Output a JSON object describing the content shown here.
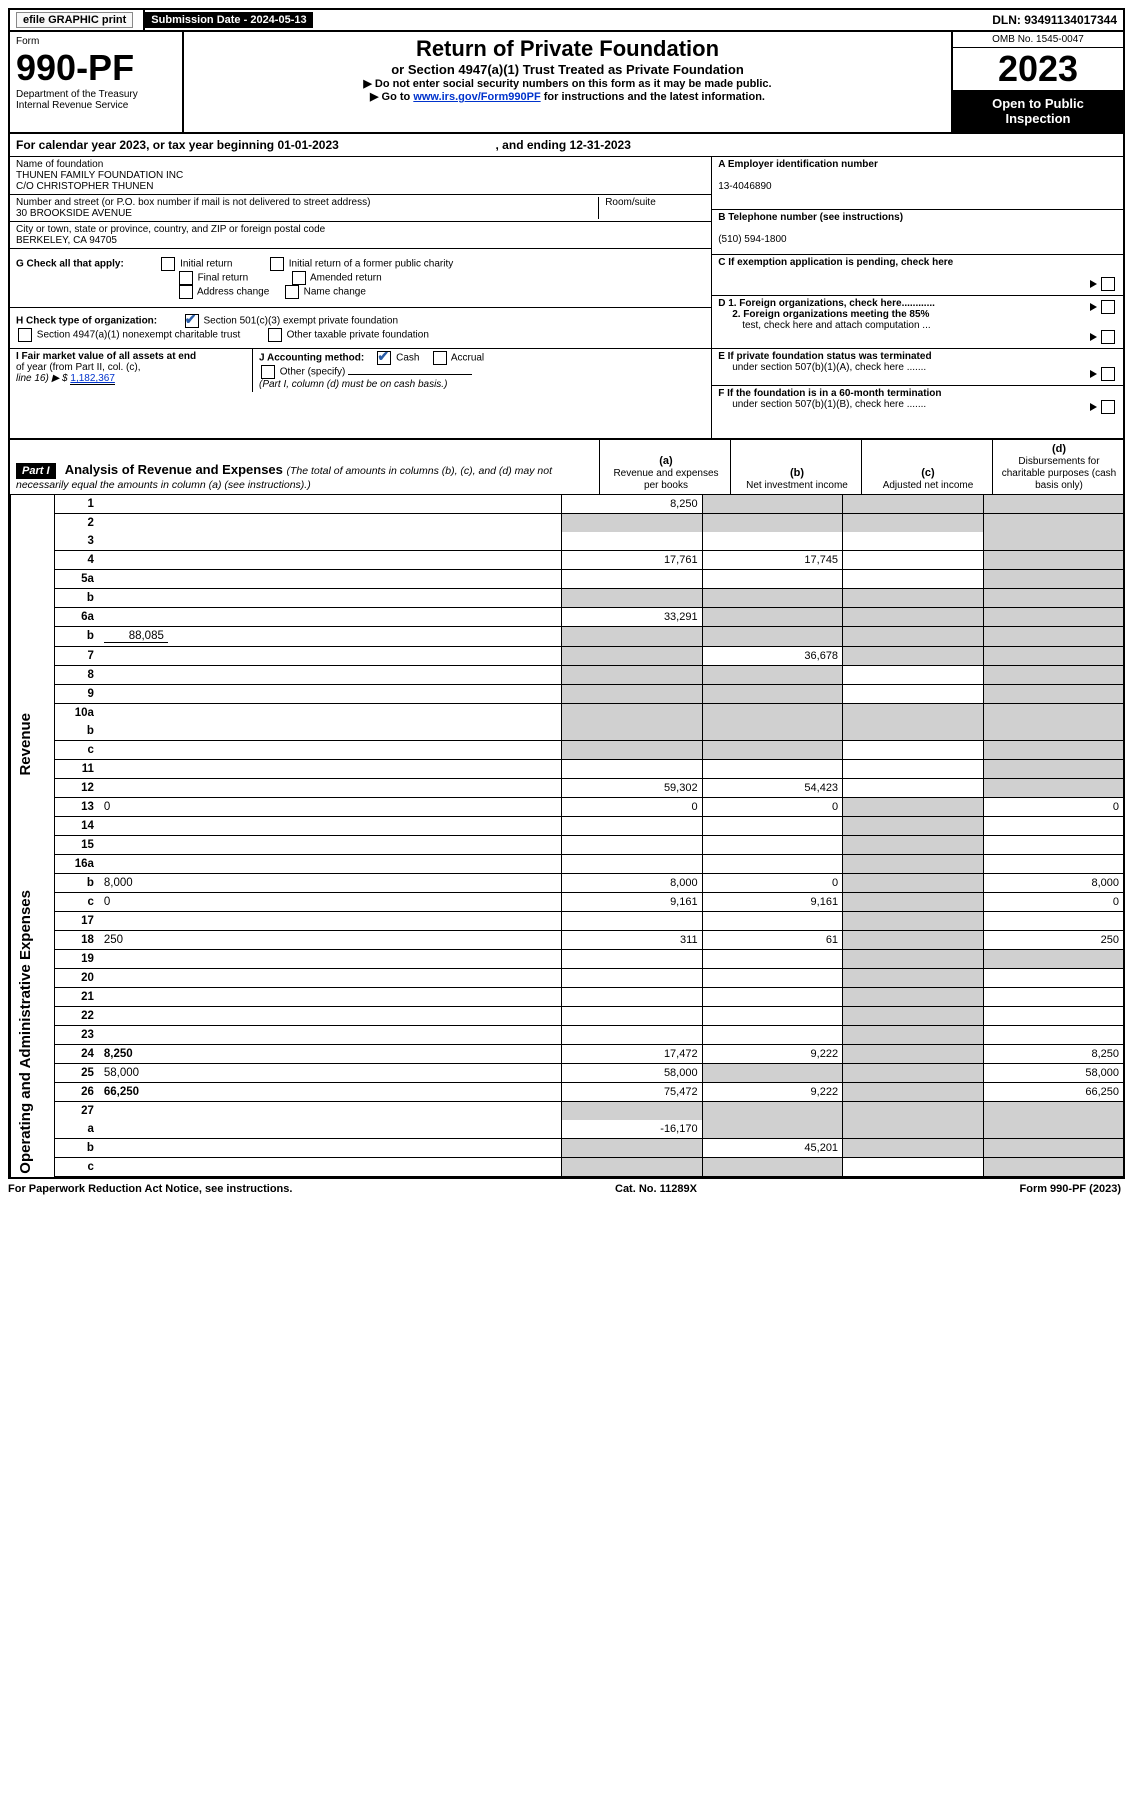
{
  "top": {
    "efile": "efile GRAPHIC print",
    "subm_label": "Submission Date - ",
    "subm_date": "2024-05-13",
    "dln_label": "DLN: ",
    "dln": "93491134017344"
  },
  "header": {
    "form_word": "Form",
    "form_num": "990-PF",
    "dept1": "Department of the Treasury",
    "dept2": "Internal Revenue Service",
    "title": "Return of Private Foundation",
    "sub": "or Section 4947(a)(1) Trust Treated as Private Foundation",
    "note1": "▶ Do not enter social security numbers on this form as it may be made public.",
    "note2_pre": "▶ Go to ",
    "note2_link": "www.irs.gov/Form990PF",
    "note2_post": " for instructions and the latest information.",
    "omb": "OMB No. 1545-0047",
    "year": "2023",
    "open": "Open to Public Inspection"
  },
  "cal": {
    "text": "For calendar year 2023, or tax year beginning 01-01-2023",
    "mid": ", and ending 12-31-2023"
  },
  "id": {
    "name_label": "Name of foundation",
    "name1": "THUNEN FAMILY FOUNDATION INC",
    "name2": "C/O CHRISTOPHER THUNEN",
    "addr_label": "Number and street (or P.O. box number if mail is not delivered to street address)",
    "addr": "30 BROOKSIDE AVENUE",
    "room_label": "Room/suite",
    "city_label": "City or town, state or province, country, and ZIP or foreign postal code",
    "city": "BERKELEY, CA  94705",
    "A_label": "A Employer identification number",
    "A_val": "13-4046890",
    "B_label": "B Telephone number (see instructions)",
    "B_val": "(510) 594-1800",
    "C_label": "C If exemption application is pending, check here",
    "D1": "D 1. Foreign organizations, check here............",
    "D2a": "2. Foreign organizations meeting the 85%",
    "D2b": "test, check here and attach computation ...",
    "E_a": "E  If private foundation status was terminated",
    "E_b": "under section 507(b)(1)(A), check here .......",
    "F_a": "F  If the foundation is in a 60-month termination",
    "F_b": "under section 507(b)(1)(B), check here .......",
    "G": "G Check all that apply:",
    "G_opts": [
      "Initial return",
      "Final return",
      "Address change",
      "Initial return of a former public charity",
      "Amended return",
      "Name change"
    ],
    "H": "H Check type of organization:",
    "H1": "Section 501(c)(3) exempt private foundation",
    "H2": "Section 4947(a)(1) nonexempt charitable trust",
    "H3": "Other taxable private foundation",
    "I_a": "I Fair market value of all assets at end",
    "I_b": "of year (from Part II, col. (c),",
    "I_c": "line 16) ▶ $  ",
    "I_val": "1,182,367",
    "J": "J Accounting method:",
    "J_cash": "Cash",
    "J_acc": "Accrual",
    "J_other": "Other (specify)",
    "J_note": "(Part I, column (d) must be on cash basis.)"
  },
  "part1": {
    "label": "Part I",
    "title": "Analysis of Revenue and Expenses ",
    "title_note": "(The total of amounts in columns (b), (c), and (d) may not necessarily equal the amounts in column (a) (see instructions).)",
    "ca": "(a)",
    "ca_t": "Revenue and expenses per books",
    "cb": "(b)",
    "cb_t": "Net investment income",
    "cc": "(c)",
    "cc_t": "Adjusted net income",
    "cd": "(d)",
    "cd_t": "Disbursements for charitable purposes (cash basis only)"
  },
  "labels": {
    "revenue": "Revenue",
    "opex": "Operating and Administrative Expenses"
  },
  "rows": [
    {
      "n": "1",
      "d": "",
      "a": "8,250",
      "b": "",
      "c": "",
      "shade": [
        "b",
        "c",
        "d"
      ]
    },
    {
      "n": "2",
      "d": "",
      "a": "",
      "b": "",
      "c": "",
      "shade": [
        "a",
        "b",
        "c",
        "d"
      ],
      "nobottom": true
    },
    {
      "n": "3",
      "d": "",
      "a": "",
      "b": "",
      "c": "",
      "shade": [
        "d"
      ]
    },
    {
      "n": "4",
      "d": "",
      "a": "17,761",
      "b": "17,745",
      "c": "",
      "shade": [
        "d"
      ]
    },
    {
      "n": "5a",
      "d": "",
      "a": "",
      "b": "",
      "c": "",
      "shade": [
        "d"
      ]
    },
    {
      "n": "b",
      "d": "",
      "a": "",
      "b": "",
      "c": "",
      "shade": [
        "a",
        "b",
        "c",
        "d"
      ]
    },
    {
      "n": "6a",
      "d": "",
      "a": "33,291",
      "b": "",
      "c": "",
      "shade": [
        "b",
        "c",
        "d"
      ]
    },
    {
      "n": "b",
      "d": "",
      "inline": "88,085",
      "a": "",
      "b": "",
      "c": "",
      "shade": [
        "a",
        "b",
        "c",
        "d"
      ]
    },
    {
      "n": "7",
      "d": "",
      "a": "",
      "b": "36,678",
      "c": "",
      "shade": [
        "a",
        "c",
        "d"
      ]
    },
    {
      "n": "8",
      "d": "",
      "a": "",
      "b": "",
      "c": "",
      "shade": [
        "a",
        "b",
        "d"
      ]
    },
    {
      "n": "9",
      "d": "",
      "a": "",
      "b": "",
      "c": "",
      "shade": [
        "a",
        "b",
        "d"
      ]
    },
    {
      "n": "10a",
      "d": "",
      "a": "",
      "b": "",
      "c": "",
      "shade": [
        "a",
        "b",
        "c",
        "d"
      ],
      "nobottom": true
    },
    {
      "n": "b",
      "d": "",
      "a": "",
      "b": "",
      "c": "",
      "shade": [
        "a",
        "b",
        "c",
        "d"
      ]
    },
    {
      "n": "c",
      "d": "",
      "a": "",
      "b": "",
      "c": "",
      "shade": [
        "a",
        "b",
        "d"
      ]
    },
    {
      "n": "11",
      "d": "",
      "a": "",
      "b": "",
      "c": "",
      "shade": [
        "d"
      ]
    },
    {
      "n": "12",
      "d": "",
      "bold": true,
      "a": "59,302",
      "b": "54,423",
      "c": "",
      "shade": [
        "d"
      ]
    },
    {
      "n": "13",
      "d": "0",
      "a": "0",
      "b": "0",
      "c": "",
      "shade": [
        "c"
      ]
    },
    {
      "n": "14",
      "d": "",
      "a": "",
      "b": "",
      "c": "",
      "shade": [
        "c"
      ]
    },
    {
      "n": "15",
      "d": "",
      "a": "",
      "b": "",
      "c": "",
      "shade": [
        "c"
      ]
    },
    {
      "n": "16a",
      "d": "",
      "a": "",
      "b": "",
      "c": "",
      "shade": [
        "c"
      ]
    },
    {
      "n": "b",
      "d": "8,000",
      "a": "8,000",
      "b": "0",
      "c": "",
      "shade": [
        "c"
      ]
    },
    {
      "n": "c",
      "d": "0",
      "a": "9,161",
      "b": "9,161",
      "c": "",
      "shade": [
        "c"
      ]
    },
    {
      "n": "17",
      "d": "",
      "a": "",
      "b": "",
      "c": "",
      "shade": [
        "c"
      ]
    },
    {
      "n": "18",
      "d": "250",
      "a": "311",
      "b": "61",
      "c": "",
      "shade": [
        "c"
      ]
    },
    {
      "n": "19",
      "d": "",
      "a": "",
      "b": "",
      "c": "",
      "shade": [
        "c",
        "d"
      ]
    },
    {
      "n": "20",
      "d": "",
      "a": "",
      "b": "",
      "c": "",
      "shade": [
        "c"
      ]
    },
    {
      "n": "21",
      "d": "",
      "a": "",
      "b": "",
      "c": "",
      "shade": [
        "c"
      ]
    },
    {
      "n": "22",
      "d": "",
      "a": "",
      "b": "",
      "c": "",
      "shade": [
        "c"
      ]
    },
    {
      "n": "23",
      "d": "",
      "a": "",
      "b": "",
      "c": "",
      "shade": [
        "c"
      ]
    },
    {
      "n": "24",
      "d": "8,250",
      "bold": true,
      "a": "17,472",
      "b": "9,222",
      "c": "",
      "shade": [
        "c"
      ]
    },
    {
      "n": "25",
      "d": "58,000",
      "a": "58,000",
      "b": "",
      "c": "",
      "shade": [
        "b",
        "c"
      ]
    },
    {
      "n": "26",
      "d": "66,250",
      "bold": true,
      "a": "75,472",
      "b": "9,222",
      "c": "",
      "shade": [
        "c"
      ]
    },
    {
      "n": "27",
      "d": "",
      "a": "",
      "b": "",
      "c": "",
      "shade": [
        "a",
        "b",
        "c",
        "d"
      ],
      "nobottom": true
    },
    {
      "n": "a",
      "d": "",
      "bold": true,
      "a": "-16,170",
      "b": "",
      "c": "",
      "shade": [
        "b",
        "c",
        "d"
      ]
    },
    {
      "n": "b",
      "d": "",
      "bold": true,
      "a": "",
      "b": "45,201",
      "c": "",
      "shade": [
        "a",
        "c",
        "d"
      ]
    },
    {
      "n": "c",
      "d": "",
      "bold": true,
      "a": "",
      "b": "",
      "c": "",
      "shade": [
        "a",
        "b",
        "d"
      ]
    }
  ],
  "footer": {
    "left": "For Paperwork Reduction Act Notice, see instructions.",
    "mid": "Cat. No. 11289X",
    "right": "Form 990-PF (2023)"
  }
}
